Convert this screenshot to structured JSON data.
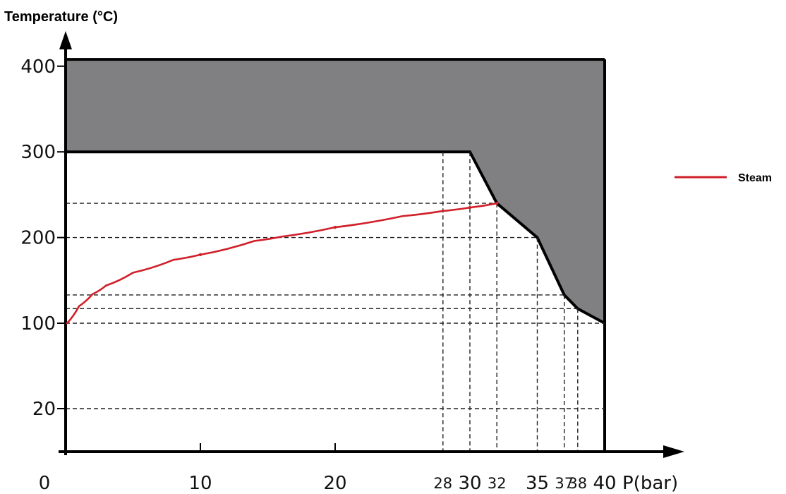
{
  "chart_data": {
    "type": "line",
    "ylabel": "Temperature (°C)",
    "xlabel": "P(bar)",
    "x_ticks": [
      {
        "value": 0,
        "label": "0"
      },
      {
        "value": 10,
        "label": "10"
      },
      {
        "value": 20,
        "label": "20"
      },
      {
        "value": 28,
        "label": "28"
      },
      {
        "value": 30,
        "label": "30"
      },
      {
        "value": 32,
        "label": "32"
      },
      {
        "value": 35,
        "label": "35"
      },
      {
        "value": 37,
        "label": "37"
      },
      {
        "value": 38,
        "label": "38"
      },
      {
        "value": 40,
        "label": "40"
      }
    ],
    "y_ticks": [
      {
        "value": 20,
        "label": "20"
      },
      {
        "value": 100,
        "label": "100"
      },
      {
        "value": 200,
        "label": "200"
      },
      {
        "value": 300,
        "label": "300"
      },
      {
        "value": 400,
        "label": "400"
      }
    ],
    "series": [
      {
        "name": "Steam",
        "color": "#d0202a",
        "x": [
          0.1,
          1,
          2,
          3,
          5,
          8,
          10,
          14,
          16,
          20,
          25,
          28,
          30,
          32
        ],
        "y": [
          100,
          120,
          134,
          144,
          159,
          174,
          180,
          196,
          201,
          212,
          225,
          231,
          235,
          240
        ]
      }
    ],
    "limit_boundary": {
      "fill_color": "#808083",
      "top_temperature": 408,
      "flat_temperature": 300,
      "curve_x": [
        30,
        32,
        35,
        37,
        38,
        40
      ],
      "curve_y": [
        300,
        240,
        200,
        133,
        117,
        100
      ]
    },
    "reference_lines": {
      "horizontal_y": [
        20,
        100,
        117,
        133,
        200,
        240
      ],
      "vertical_x": [
        28,
        30,
        32,
        35,
        37,
        38
      ]
    }
  }
}
